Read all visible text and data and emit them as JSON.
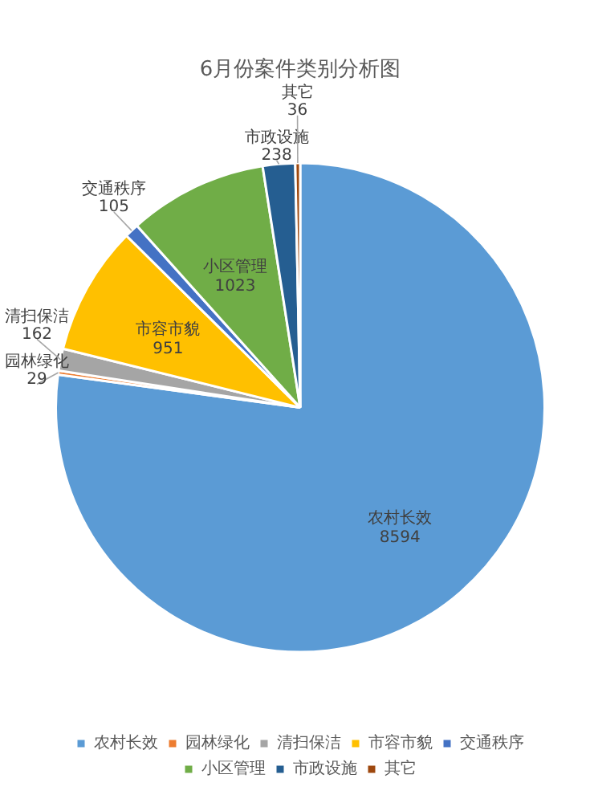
{
  "chart_data": {
    "type": "pie",
    "title": "6月份案件类别分析图",
    "categories": [
      "农村长效",
      "园林绿化",
      "清扫保洁",
      "市容市貌",
      "交通秩序",
      "小区管理",
      "市政设施",
      "其它"
    ],
    "values": [
      8594,
      29,
      162,
      951,
      105,
      1023,
      238,
      36
    ],
    "colors": [
      "#5b9bd5",
      "#ed7d31",
      "#a5a5a5",
      "#ffc000",
      "#4472c4",
      "#70ad47",
      "#255e91",
      "#9e480e"
    ],
    "data_labels": true,
    "legend": "bottom"
  }
}
